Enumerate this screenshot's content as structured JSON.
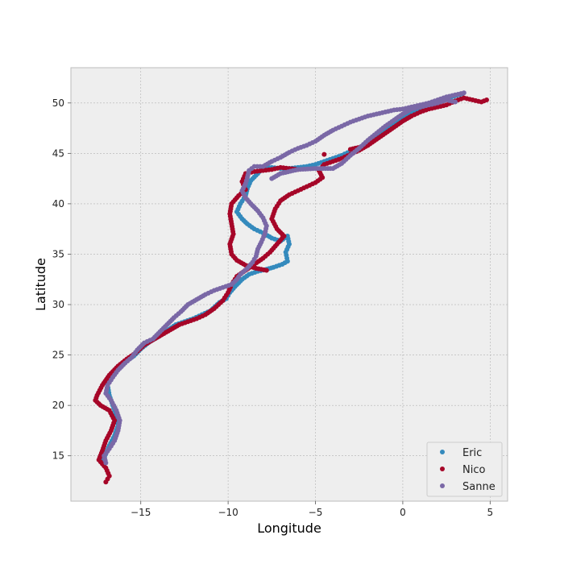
{
  "chart_data": {
    "type": "scatter",
    "title": "",
    "xlabel": "Longitude",
    "ylabel": "Latitude",
    "xlim": [
      -19,
      6
    ],
    "ylim": [
      10.5,
      53.5
    ],
    "xticks": [
      -15,
      -10,
      -5,
      0,
      5
    ],
    "yticks": [
      15,
      20,
      25,
      30,
      35,
      40,
      45,
      50
    ],
    "xtick_labels": [
      "−15",
      "−10",
      "−5",
      "0",
      "5"
    ],
    "ytick_labels": [
      "15",
      "20",
      "25",
      "30",
      "35",
      "40",
      "45",
      "50"
    ],
    "grid": true,
    "legend_position": "lower-right",
    "background": "#eeeeee",
    "series": [
      {
        "name": "Eric",
        "color": "#348abd",
        "points": [
          [
            3.4,
            50.9
          ],
          [
            2.8,
            50.6
          ],
          [
            2.0,
            50.1
          ],
          [
            1.5,
            49.6
          ],
          [
            1.0,
            49.4
          ],
          [
            0.5,
            49.0
          ],
          [
            0.0,
            48.5
          ],
          [
            -0.5,
            48.0
          ],
          [
            -1.0,
            47.3
          ],
          [
            -1.5,
            46.6
          ],
          [
            -2.0,
            46.0
          ],
          [
            -2.5,
            45.5
          ],
          [
            -3.0,
            45.2
          ],
          [
            -3.5,
            44.8
          ],
          [
            -4.0,
            44.5
          ],
          [
            -4.5,
            44.2
          ],
          [
            -5.0,
            43.9
          ],
          [
            -5.5,
            43.7
          ],
          [
            -6.0,
            43.6
          ],
          [
            -6.5,
            43.5
          ],
          [
            -7.0,
            43.5
          ],
          [
            -7.5,
            43.6
          ],
          [
            -8.0,
            43.6
          ],
          [
            -8.3,
            43.0
          ],
          [
            -8.7,
            42.3
          ],
          [
            -8.9,
            41.5
          ],
          [
            -9.0,
            40.8
          ],
          [
            -9.3,
            40.0
          ],
          [
            -9.5,
            39.2
          ],
          [
            -9.2,
            38.5
          ],
          [
            -8.9,
            38.0
          ],
          [
            -8.5,
            37.5
          ],
          [
            -8.0,
            37.1
          ],
          [
            -7.5,
            36.6
          ],
          [
            -7.0,
            36.3
          ],
          [
            -6.6,
            36.8
          ],
          [
            -6.5,
            36.0
          ],
          [
            -6.7,
            35.2
          ],
          [
            -6.6,
            34.3
          ],
          [
            -6.9,
            34.0
          ],
          [
            -7.4,
            33.7
          ],
          [
            -7.8,
            33.5
          ],
          [
            -8.3,
            33.3
          ],
          [
            -8.8,
            33.0
          ],
          [
            -9.2,
            32.5
          ],
          [
            -9.6,
            31.8
          ],
          [
            -9.9,
            31.2
          ],
          [
            -10.1,
            30.6
          ],
          [
            -10.5,
            30.2
          ],
          [
            -11.0,
            29.4
          ],
          [
            -11.5,
            29.0
          ],
          [
            -12.0,
            28.6
          ],
          [
            -12.5,
            28.3
          ],
          [
            -13.0,
            28.0
          ],
          [
            -13.5,
            27.4
          ],
          [
            -14.0,
            26.8
          ],
          [
            -14.5,
            26.3
          ],
          [
            -15.0,
            25.6
          ],
          [
            -15.4,
            24.9
          ],
          [
            -15.9,
            24.3
          ],
          [
            -16.3,
            23.8
          ],
          [
            -16.7,
            23.0
          ],
          [
            -16.9,
            22.0
          ],
          [
            -16.8,
            21.0
          ],
          [
            -16.6,
            20.0
          ],
          [
            -16.4,
            19.0
          ],
          [
            -16.3,
            18.0
          ],
          [
            -16.5,
            17.0
          ],
          [
            -16.8,
            16.0
          ],
          [
            -17.0,
            15.2
          ],
          [
            -17.2,
            14.5
          ]
        ]
      },
      {
        "name": "Nico",
        "color": "#a60628",
        "points": [
          [
            4.8,
            50.3
          ],
          [
            4.5,
            50.1
          ],
          [
            4.0,
            50.3
          ],
          [
            3.5,
            50.5
          ],
          [
            3.0,
            50.2
          ],
          [
            2.5,
            49.8
          ],
          [
            2.0,
            49.6
          ],
          [
            1.5,
            49.4
          ],
          [
            1.0,
            49.1
          ],
          [
            0.5,
            48.7
          ],
          [
            0.0,
            48.2
          ],
          [
            -0.5,
            47.6
          ],
          [
            -1.0,
            47.0
          ],
          [
            -1.5,
            46.4
          ],
          [
            -2.0,
            45.8
          ],
          [
            -2.5,
            45.3
          ],
          [
            -3.0,
            44.9
          ],
          [
            -3.5,
            44.5
          ],
          [
            -4.0,
            44.2
          ],
          [
            -4.5,
            43.9
          ],
          [
            -4.8,
            43.3
          ],
          [
            -4.6,
            42.6
          ],
          [
            -5.0,
            42.1
          ],
          [
            -5.5,
            41.7
          ],
          [
            -6.0,
            41.3
          ],
          [
            -6.5,
            40.9
          ],
          [
            -7.0,
            40.3
          ],
          [
            -7.3,
            39.5
          ],
          [
            -7.5,
            38.5
          ],
          [
            -7.2,
            37.5
          ],
          [
            -6.8,
            36.8
          ],
          [
            -7.2,
            36.0
          ],
          [
            -7.6,
            35.2
          ],
          [
            -8.0,
            34.6
          ],
          [
            -8.5,
            34.0
          ],
          [
            -9.0,
            33.4
          ],
          [
            -9.5,
            32.8
          ],
          [
            -9.8,
            32.0
          ],
          [
            -10.0,
            31.2
          ],
          [
            -10.3,
            30.4
          ],
          [
            -10.8,
            29.6
          ],
          [
            -11.3,
            29.0
          ],
          [
            -11.8,
            28.6
          ],
          [
            -12.3,
            28.3
          ],
          [
            -12.8,
            28.0
          ],
          [
            -13.3,
            27.5
          ],
          [
            -13.8,
            27.0
          ],
          [
            -14.3,
            26.5
          ],
          [
            -14.8,
            26.0
          ],
          [
            -15.3,
            25.2
          ],
          [
            -15.8,
            24.6
          ],
          [
            -16.3,
            23.9
          ],
          [
            -16.8,
            23.0
          ],
          [
            -17.2,
            22.0
          ],
          [
            -17.5,
            21.0
          ],
          [
            -17.6,
            20.5
          ],
          [
            -17.3,
            20.0
          ],
          [
            -16.8,
            19.5
          ],
          [
            -16.5,
            18.5
          ],
          [
            -16.7,
            17.5
          ],
          [
            -17.0,
            16.5
          ],
          [
            -17.2,
            15.5
          ],
          [
            -17.4,
            14.6
          ],
          [
            -17.0,
            13.8
          ],
          [
            -16.8,
            13.0
          ],
          [
            -17.0,
            12.4
          ],
          [
            -6.0,
            43.4
          ],
          [
            -6.5,
            43.5
          ],
          [
            -7.0,
            43.6
          ],
          [
            -7.5,
            43.4
          ],
          [
            -8.0,
            43.3
          ],
          [
            -8.5,
            43.2
          ],
          [
            -9.0,
            43.0
          ],
          [
            -9.2,
            42.2
          ],
          [
            -9.0,
            41.4
          ],
          [
            -9.4,
            40.8
          ],
          [
            -9.8,
            40.0
          ],
          [
            -9.9,
            39.0
          ],
          [
            -9.8,
            38.0
          ],
          [
            -9.7,
            37.0
          ],
          [
            -9.9,
            36.0
          ],
          [
            -9.8,
            35.0
          ],
          [
            -9.5,
            34.4
          ],
          [
            -9.0,
            33.9
          ],
          [
            -8.4,
            33.6
          ],
          [
            -7.8,
            33.4
          ],
          [
            -3.0,
            45.4
          ],
          [
            -2.0,
            45.8
          ],
          [
            -4.5,
            44.9
          ]
        ]
      },
      {
        "name": "Sanne",
        "color": "#7a68a6",
        "points": [
          [
            3.5,
            51.0
          ],
          [
            3.0,
            50.8
          ],
          [
            2.5,
            50.6
          ],
          [
            2.0,
            50.3
          ],
          [
            1.5,
            50.0
          ],
          [
            1.0,
            49.8
          ],
          [
            0.5,
            49.6
          ],
          [
            0.0,
            49.4
          ],
          [
            -0.5,
            49.3
          ],
          [
            -1.0,
            49.1
          ],
          [
            -1.5,
            48.9
          ],
          [
            -2.0,
            48.7
          ],
          [
            -2.5,
            48.4
          ],
          [
            -3.0,
            48.1
          ],
          [
            -3.5,
            47.7
          ],
          [
            -4.0,
            47.3
          ],
          [
            -4.5,
            46.8
          ],
          [
            -5.0,
            46.2
          ],
          [
            -5.5,
            45.8
          ],
          [
            -6.0,
            45.5
          ],
          [
            -6.5,
            45.1
          ],
          [
            -7.0,
            44.6
          ],
          [
            -7.5,
            44.2
          ],
          [
            -8.0,
            43.7
          ],
          [
            -8.5,
            43.7
          ],
          [
            -8.8,
            43.3
          ],
          [
            -8.9,
            42.6
          ],
          [
            -9.0,
            42.0
          ],
          [
            -9.2,
            41.3
          ],
          [
            -9.0,
            40.6
          ],
          [
            -8.7,
            40.0
          ],
          [
            -8.3,
            39.3
          ],
          [
            -8.0,
            38.6
          ],
          [
            -7.8,
            37.8
          ],
          [
            -7.9,
            37.0
          ],
          [
            -8.1,
            36.2
          ],
          [
            -8.3,
            35.5
          ],
          [
            -8.4,
            34.8
          ],
          [
            -8.6,
            34.2
          ],
          [
            -8.9,
            33.6
          ],
          [
            -9.3,
            33.0
          ],
          [
            -9.5,
            32.5
          ],
          [
            -9.8,
            32.0
          ],
          [
            -10.3,
            31.7
          ],
          [
            -10.8,
            31.4
          ],
          [
            -11.3,
            31.0
          ],
          [
            -11.8,
            30.5
          ],
          [
            -12.3,
            30.0
          ],
          [
            -12.7,
            29.3
          ],
          [
            -13.1,
            28.7
          ],
          [
            -13.5,
            28.0
          ],
          [
            -13.9,
            27.3
          ],
          [
            -14.3,
            26.6
          ],
          [
            -14.8,
            26.2
          ],
          [
            -15.2,
            25.5
          ],
          [
            -15.5,
            24.8
          ],
          [
            -15.9,
            24.2
          ],
          [
            -16.3,
            23.5
          ],
          [
            -16.6,
            22.8
          ],
          [
            -16.9,
            22.0
          ],
          [
            -17.0,
            21.2
          ],
          [
            -16.7,
            20.5
          ],
          [
            -16.4,
            19.5
          ],
          [
            -16.2,
            18.5
          ],
          [
            -16.3,
            17.5
          ],
          [
            -16.5,
            16.5
          ],
          [
            -16.8,
            15.7
          ],
          [
            -17.1,
            15.0
          ],
          [
            -17.0,
            14.3
          ],
          [
            -7.5,
            42.5
          ],
          [
            -7.0,
            43.0
          ],
          [
            -6.0,
            43.4
          ],
          [
            -5.0,
            43.5
          ],
          [
            -4.0,
            43.5
          ],
          [
            -3.5,
            44.0
          ],
          [
            -3.0,
            44.8
          ],
          [
            -2.5,
            45.5
          ],
          [
            -2.0,
            46.3
          ],
          [
            -1.5,
            47.0
          ],
          [
            -1.0,
            47.7
          ],
          [
            -0.5,
            48.3
          ],
          [
            0.0,
            48.9
          ],
          [
            0.5,
            49.4
          ],
          [
            1.0,
            49.6
          ],
          [
            1.5,
            49.8
          ],
          [
            2.0,
            50.0
          ],
          [
            2.5,
            50.3
          ],
          [
            3.0,
            50.1
          ]
        ]
      }
    ]
  }
}
